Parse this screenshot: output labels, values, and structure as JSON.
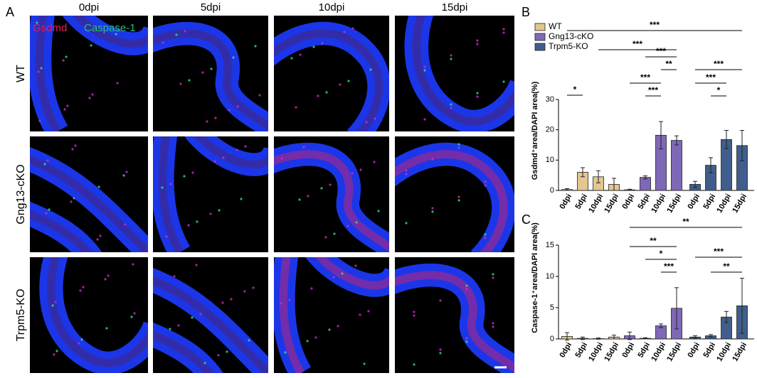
{
  "panel_labels": [
    "A",
    "B",
    "C"
  ],
  "panel_a": {
    "columns": [
      "0dpi",
      "5dpi",
      "10dpi",
      "15dpi"
    ],
    "rows": [
      "WT",
      "Gng13-cKO",
      "Trpm5-KO"
    ],
    "stains": [
      {
        "name": "Gsdmd",
        "color": "#e0205a"
      },
      {
        "name": "Caspase-1",
        "color": "#22c07a"
      }
    ]
  },
  "chart_data": [
    {
      "type": "bar",
      "y_label": "Gsdmd⁺area/DAPI area(%)",
      "categories": [
        "0dpi",
        "5dpi",
        "10dpi",
        "15dpi"
      ],
      "series": [
        {
          "name": "WT",
          "color": "#e3c690",
          "values": [
            0.3,
            6,
            4.5,
            2
          ],
          "errors": [
            0.3,
            1.5,
            2,
            2
          ]
        },
        {
          "name": "Gng13-cKO",
          "color": "#8068b8",
          "values": [
            0.2,
            4.3,
            18.2,
            16.5
          ],
          "errors": [
            0.2,
            0.5,
            4.5,
            1.5
          ]
        },
        {
          "name": "Trpm5-KO",
          "color": "#3f5e8c",
          "values": [
            2,
            8.3,
            16.8,
            14.8
          ],
          "errors": [
            1,
            2.5,
            3,
            5
          ]
        }
      ],
      "ylim": [
        0,
        30
      ],
      "yticks": [
        0,
        10,
        20,
        30
      ],
      "legend": "upper left",
      "annotations": [
        "***",
        "***",
        "***",
        "**",
        "***",
        "***",
        "*",
        "***",
        "***",
        "*"
      ]
    },
    {
      "type": "bar",
      "y_label": "Caspase-1⁺area/DAPI area(%)",
      "categories": [
        "0dpi",
        "5dpi",
        "10dpi",
        "15dpi"
      ],
      "series": [
        {
          "color": "#e3c690",
          "values": [
            0.4,
            0.1,
            0.05,
            0.3
          ],
          "errors": [
            0.6,
            0.2,
            0.1,
            0.3
          ]
        },
        {
          "color": "#8068b8",
          "values": [
            0.5,
            0.1,
            2.1,
            4.9
          ],
          "errors": [
            0.6,
            0.1,
            0.3,
            3.3
          ]
        },
        {
          "color": "#3f5e8c",
          "values": [
            0.3,
            0.5,
            3.5,
            5.3
          ],
          "errors": [
            0.2,
            0.2,
            0.9,
            4.4
          ]
        }
      ],
      "ylim": [
        0,
        15
      ],
      "yticks": [
        0,
        5,
        10,
        15
      ],
      "annotations": [
        "**",
        "**",
        "*",
        "***",
        "***",
        "**"
      ]
    }
  ]
}
